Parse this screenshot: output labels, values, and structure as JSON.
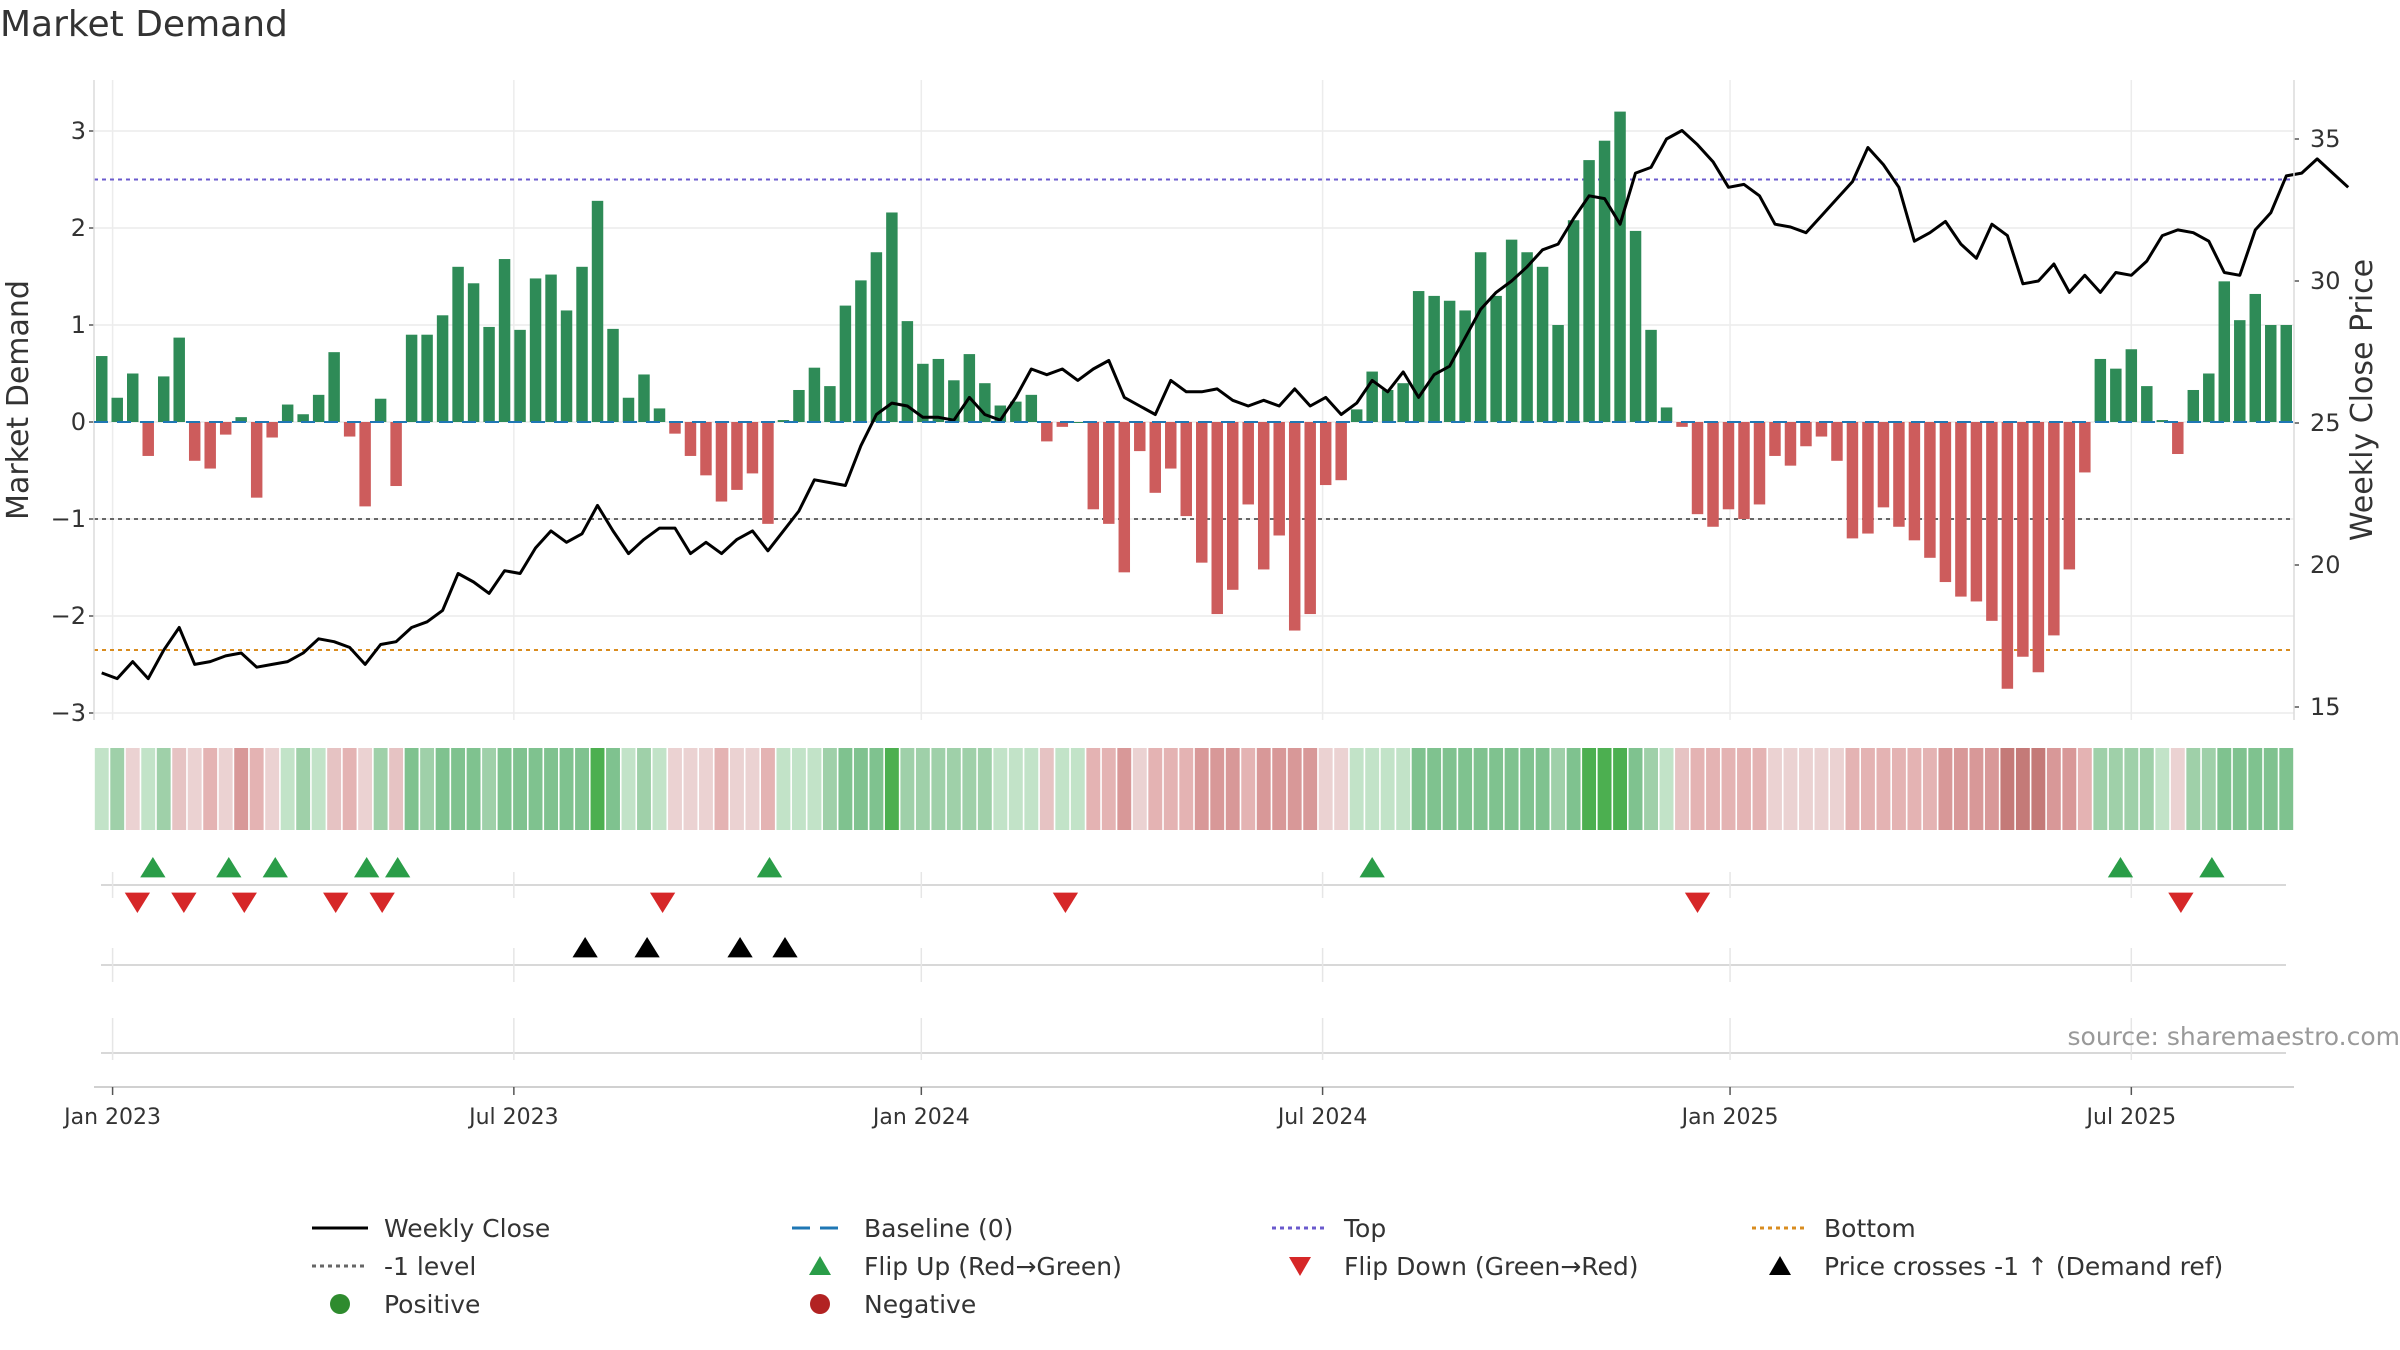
{
  "title": "Market Demand",
  "source": "source: sharemaestro.com",
  "chart_data": {
    "type": "bar+line",
    "title": "Market Demand",
    "ylabel_left": "Market Demand",
    "ylabel_right": "Weekly Close Price",
    "y_left_lim": [
      -3.2,
      3.45
    ],
    "y_right_lim": [
      14.7,
      36.4
    ],
    "y_left_ticks": [
      3,
      2,
      1,
      0,
      -1,
      -2,
      -3
    ],
    "y_left_tick_labels": [
      "3",
      "2",
      "1",
      "0",
      "−1",
      "−2",
      "−3"
    ],
    "y_right_ticks": [
      35,
      30,
      25,
      20,
      15
    ],
    "y_right_tick_labels": [
      "35",
      "30",
      "25",
      "20",
      "15"
    ],
    "x_start_date": "2022-12-23",
    "week_step_days": 7,
    "x_ticks": [
      {
        "label": "Jan 2023",
        "week": 1.2
      },
      {
        "label": "Jul 2023",
        "week": 27.1
      },
      {
        "label": "Jan 2024",
        "week": 53.4
      },
      {
        "label": "Jul 2024",
        "week": 79.3
      },
      {
        "label": "Jan 2025",
        "week": 105.6
      },
      {
        "label": "Jul 2025",
        "week": 131.5
      }
    ],
    "reference_lines": {
      "top": 2.5,
      "bottom": -2.35,
      "minus_one": -1,
      "baseline": 0
    },
    "demand": [
      0.68,
      0.25,
      0.5,
      -0.35,
      0.47,
      0.87,
      -0.4,
      -0.48,
      -0.13,
      0.05,
      -0.78,
      -0.16,
      0.18,
      0.08,
      0.28,
      0.72,
      -0.15,
      -0.87,
      0.24,
      -0.66,
      0.9,
      0.9,
      1.1,
      1.6,
      1.43,
      0.98,
      1.68,
      0.95,
      1.48,
      1.52,
      1.15,
      1.6,
      2.28,
      0.96,
      0.25,
      0.49,
      0.14,
      -0.12,
      -0.35,
      -0.55,
      -0.82,
      -0.7,
      -0.53,
      -1.05,
      0.02,
      0.33,
      0.56,
      0.37,
      1.2,
      1.46,
      1.75,
      2.16,
      1.04,
      0.6,
      0.65,
      0.43,
      0.7,
      0.4,
      0.17,
      0.21,
      0.28,
      -0.2,
      -0.05,
      0,
      -0.9,
      -1.05,
      -1.55,
      -0.3,
      -0.73,
      -0.48,
      -0.97,
      -1.45,
      -1.98,
      -1.73,
      -0.85,
      -1.52,
      -1.17,
      -2.15,
      -1.98,
      -0.65,
      -0.6,
      0.13,
      0.52,
      0.33,
      0.4,
      1.35,
      1.3,
      1.25,
      1.15,
      1.75,
      1.3,
      1.88,
      1.75,
      1.6,
      1.0,
      2.08,
      2.7,
      2.9,
      3.2,
      1.97,
      0.95,
      0.15,
      -0.05,
      -0.95,
      -1.08,
      -0.9,
      -1.0,
      -0.85,
      -0.35,
      -0.45,
      -0.25,
      -0.15,
      -0.4,
      -1.2,
      -1.15,
      -0.88,
      -1.08,
      -1.22,
      -1.4,
      -1.65,
      -1.8,
      -1.85,
      -2.05,
      -2.75,
      -2.42,
      -2.58,
      -2.2,
      -1.52,
      -0.52,
      0.65,
      0.55,
      0.75,
      0.37,
      0.02,
      -0.33,
      0.33,
      0.5,
      1.45,
      1.05,
      1.32,
      1.0,
      1.0
    ],
    "price": [
      16.2,
      16.0,
      16.6,
      16.0,
      17.0,
      17.8,
      16.5,
      16.6,
      16.8,
      16.9,
      16.4,
      16.5,
      16.6,
      16.9,
      17.4,
      17.3,
      17.1,
      16.5,
      17.2,
      17.3,
      17.8,
      18.0,
      18.4,
      19.7,
      19.4,
      19.0,
      19.8,
      19.7,
      20.6,
      21.2,
      20.8,
      21.1,
      22.1,
      21.2,
      20.4,
      20.9,
      21.3,
      21.3,
      20.4,
      20.8,
      20.4,
      20.9,
      21.2,
      20.5,
      21.2,
      21.9,
      23.0,
      22.9,
      22.8,
      24.2,
      25.3,
      25.7,
      25.6,
      25.2,
      25.2,
      25.1,
      25.9,
      25.3,
      25.1,
      25.9,
      26.9,
      26.7,
      26.9,
      26.5,
      26.9,
      27.2,
      25.9,
      25.6,
      25.3,
      26.5,
      26.1,
      26.1,
      26.2,
      25.8,
      25.6,
      25.8,
      25.6,
      26.2,
      25.6,
      25.9,
      25.3,
      25.7,
      26.5,
      26.1,
      26.8,
      25.9,
      26.7,
      27.0,
      28.0,
      29.0,
      29.6,
      30.0,
      30.5,
      31.1,
      31.3,
      32.2,
      33.0,
      32.9,
      32.0,
      33.8,
      34.0,
      35.0,
      35.3,
      34.8,
      34.2,
      33.3,
      33.4,
      33.0,
      32.0,
      31.9,
      31.7,
      32.3,
      32.9,
      33.5,
      34.7,
      34.1,
      33.3,
      31.4,
      31.7,
      32.1,
      31.3,
      30.8,
      32.0,
      31.6,
      29.9,
      30.0,
      30.6,
      29.6,
      30.2,
      29.6,
      30.3,
      30.2,
      30.7,
      31.6,
      31.8,
      31.7,
      31.4,
      30.3,
      30.2,
      31.8,
      32.4,
      33.7,
      33.8,
      34.3,
      33.8,
      33.3
    ],
    "strip_shades": [
      4,
      3,
      6,
      4,
      3,
      5,
      6,
      7,
      6,
      8,
      7,
      6,
      4,
      3,
      4,
      5,
      7,
      6,
      3,
      5,
      2,
      3,
      2,
      2,
      2,
      3,
      2,
      2,
      2,
      2,
      2,
      2,
      1,
      2,
      4,
      3,
      4,
      6,
      6,
      6,
      7,
      6,
      6,
      7,
      4,
      4,
      4,
      3,
      2,
      2,
      2,
      1,
      3,
      3,
      3,
      3,
      3,
      3,
      4,
      4,
      4,
      5,
      4,
      4,
      7,
      7,
      8,
      6,
      7,
      7,
      7,
      8,
      8,
      8,
      7,
      8,
      8,
      8,
      8,
      6,
      6,
      4,
      4,
      4,
      4,
      2,
      2,
      2,
      2,
      2,
      2,
      2,
      2,
      2,
      3,
      2,
      1,
      1,
      1,
      2,
      3,
      4,
      5,
      7,
      7,
      7,
      7,
      7,
      6,
      6,
      6,
      6,
      6,
      7,
      7,
      7,
      7,
      7,
      7,
      8,
      8,
      8,
      8,
      9,
      9,
      9,
      8,
      8,
      7,
      3,
      3,
      3,
      3,
      4,
      6,
      3,
      3,
      2,
      2,
      2,
      2,
      2
    ],
    "markers": {
      "flip_up_weeks": [
        3.8,
        8.7,
        11.7,
        17.6,
        19.6,
        43.6,
        82.5,
        130.8,
        136.7
      ],
      "flip_down_weeks": [
        2.8,
        5.8,
        9.7,
        15.6,
        18.6,
        36.7,
        62.7,
        103.5,
        134.7
      ],
      "price_cross_weeks": [
        31.7,
        35.7,
        41.7,
        44.6
      ]
    },
    "legend": [
      {
        "label": "Weekly Close",
        "symbol": "line-black"
      },
      {
        "label": "Baseline (0)",
        "symbol": "dash-blue"
      },
      {
        "label": "Top",
        "symbol": "dot-purple"
      },
      {
        "label": "Bottom",
        "symbol": "dot-orange"
      },
      {
        "label": "-1 level",
        "symbol": "dot-gray"
      },
      {
        "label": "Flip Up (Red→Green)",
        "symbol": "tri-up-green"
      },
      {
        "label": "Flip Down (Green→Red)",
        "symbol": "tri-down-red"
      },
      {
        "label": "Price crosses -1 ↑ (Demand ref)",
        "symbol": "tri-up-black"
      },
      {
        "label": "Positive",
        "symbol": "circle-green"
      },
      {
        "label": "Negative",
        "symbol": "circle-red"
      }
    ],
    "colors": {
      "positive_bar": "#2e8b57",
      "negative_bar": "#cd5c5c",
      "price_line": "#000000",
      "top_line": "#6a5acd",
      "bottom_line": "#d98c1f",
      "minus_one_line": "#666666",
      "baseline": "#1f77b4",
      "flip_up": "#2a9d48",
      "flip_down": "#d62728",
      "positive_dot": "#2e8b2e",
      "negative_dot": "#b22222",
      "strip_palette": [
        "#4caf50",
        "#7fc28f",
        "#9fd0a9",
        "#c2e3c8",
        "#e6c3c3",
        "#ebd2d2",
        "#e4b3b3",
        "#d89898",
        "#c47a78"
      ]
    }
  }
}
